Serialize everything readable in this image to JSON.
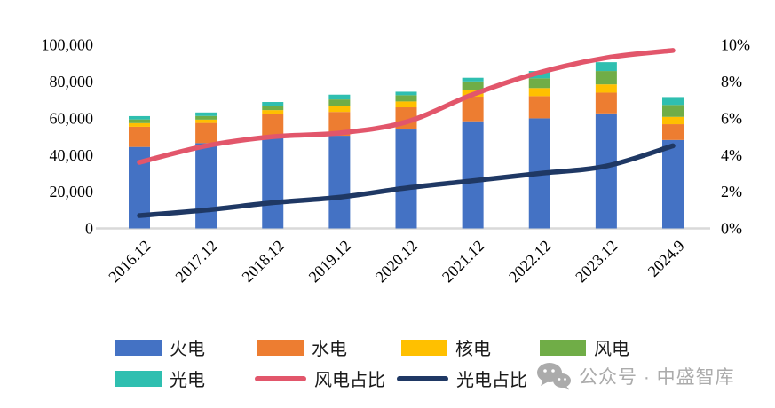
{
  "chart_data": {
    "type": "bar",
    "subtype": "stacked-bars-with-two-percentage-lines",
    "categories": [
      "2016.12",
      "2017.12",
      "2018.12",
      "2019.12",
      "2020.12",
      "2021.12",
      "2022.12",
      "2023.12",
      "2024.9"
    ],
    "series": [
      {
        "name": "火电",
        "color": "#4472C4",
        "values": [
          44400,
          46500,
          50000,
          50500,
          53900,
          58400,
          60000,
          62700,
          48200
        ]
      },
      {
        "name": "水电",
        "color": "#ED7D31",
        "values": [
          11000,
          11000,
          12200,
          13000,
          12100,
          13400,
          12100,
          11300,
          8600
        ]
      },
      {
        "name": "核电",
        "color": "#FFC000",
        "values": [
          2000,
          1800,
          2300,
          3300,
          3200,
          3500,
          4400,
          4500,
          4000
        ]
      },
      {
        "name": "风电",
        "color": "#70AD47",
        "values": [
          2000,
          2000,
          2400,
          3500,
          3400,
          4800,
          5300,
          7300,
          6500
        ]
      },
      {
        "name": "光电",
        "color": "#2FBFB0",
        "values": [
          1800,
          1900,
          2000,
          2600,
          1900,
          2000,
          4000,
          4800,
          4300
        ]
      }
    ],
    "line_series": [
      {
        "name": "风电占比",
        "color": "#E2566B",
        "values_pct": [
          3.6,
          4.5,
          5.0,
          5.2,
          5.8,
          7.3,
          8.5,
          9.3,
          9.7
        ]
      },
      {
        "name": "光电占比",
        "color": "#1F3864",
        "values_pct": [
          0.7,
          1.0,
          1.4,
          1.7,
          2.2,
          2.6,
          3.0,
          3.4,
          4.5
        ]
      }
    ],
    "left_axis": {
      "ticks": [
        "0",
        "20,000",
        "40,000",
        "60,000",
        "80,000",
        "100,000"
      ],
      "min": 0,
      "max": 100000
    },
    "right_axis": {
      "ticks": [
        "0%",
        "2%",
        "4%",
        "6%",
        "8%",
        "10%"
      ],
      "min": 0,
      "max": 10
    },
    "grid": "off",
    "legend_position": "bottom"
  },
  "legend": {
    "items": [
      {
        "label": "火电",
        "color": "#4472C4",
        "type": "swatch"
      },
      {
        "label": "水电",
        "color": "#ED7D31",
        "type": "swatch"
      },
      {
        "label": "核电",
        "color": "#FFC000",
        "type": "swatch"
      },
      {
        "label": "风电",
        "color": "#70AD47",
        "type": "swatch"
      },
      {
        "label": "光电",
        "color": "#2FBFB0",
        "type": "swatch"
      },
      {
        "label": "风电占比",
        "color": "#E2566B",
        "type": "line"
      },
      {
        "label": "光电占比",
        "color": "#1F3864",
        "type": "line"
      }
    ]
  },
  "watermark": {
    "text": "公众号 · 中盛智库"
  },
  "colors": {
    "axis_text": "#000000",
    "baseline": "#d9d9d9",
    "watermark": "#ababab"
  }
}
